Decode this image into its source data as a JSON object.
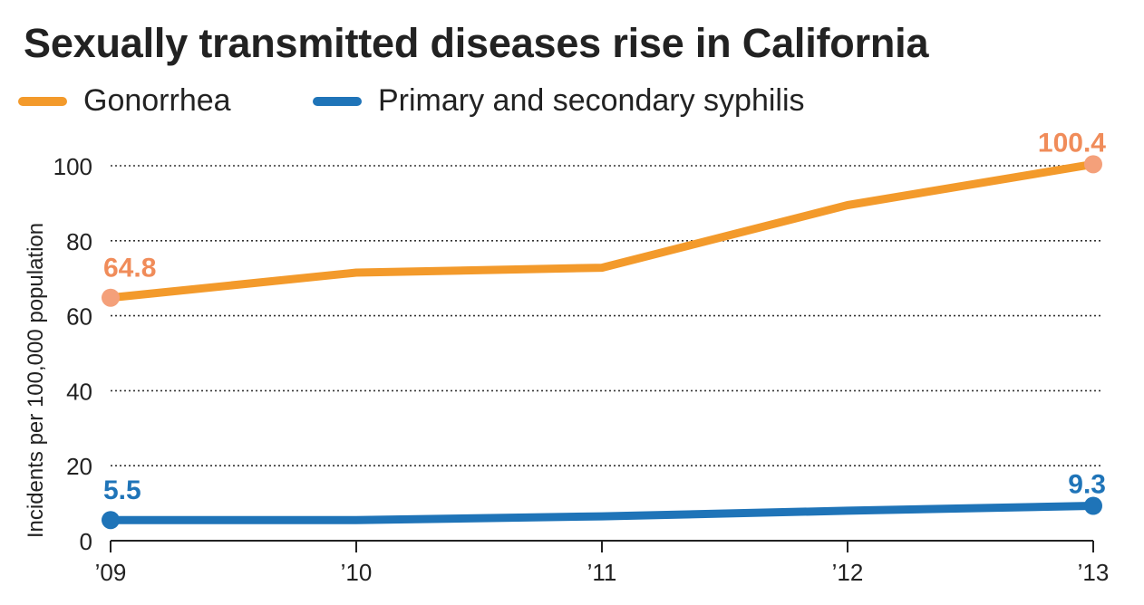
{
  "chart_data": {
    "type": "line",
    "title": "Sexually transmitted diseases rise in California",
    "xlabel": "",
    "ylabel": "Incidents per 100,000 population",
    "categories": [
      "’09",
      "’10",
      "’11",
      "’12",
      "’13"
    ],
    "y_ticks": [
      "0",
      "20",
      "40",
      "60",
      "80",
      "100"
    ],
    "ylim": [
      0,
      100
    ],
    "grid": "dotted horizontal",
    "legend_position": "top-left",
    "series": [
      {
        "name": "Gonorrhea",
        "color": "#f39a2b",
        "marker_color": "#f4a07a",
        "values": [
          64.8,
          71.5,
          72.8,
          89.5,
          100.4
        ],
        "labels": {
          "first": "64.8",
          "last": "100.4"
        }
      },
      {
        "name": "Primary and secondary syphilis",
        "color": "#1f74b8",
        "marker_color": "#1f74b8",
        "values": [
          5.5,
          5.5,
          6.5,
          8.0,
          9.3
        ],
        "labels": {
          "first": "5.5",
          "last": "9.3"
        }
      }
    ]
  }
}
